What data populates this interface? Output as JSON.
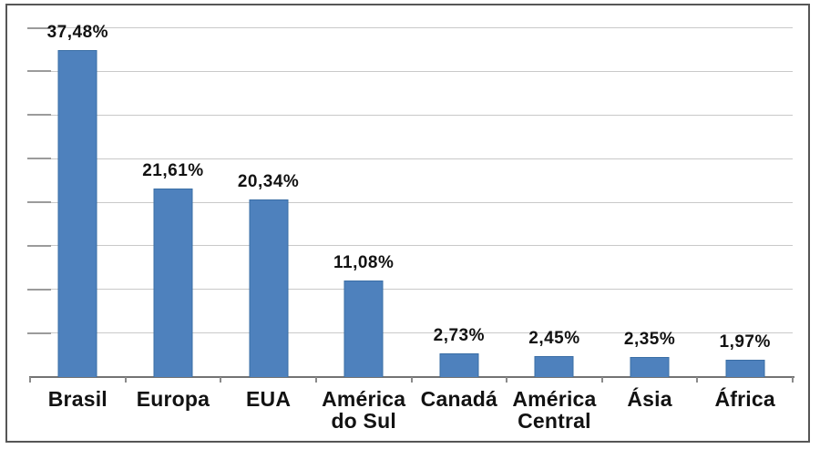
{
  "chart_data": {
    "type": "bar",
    "title": "",
    "xlabel": "",
    "ylabel": "",
    "categories": [
      "Brasil",
      "Europa",
      "EUA",
      "América do Sul",
      "Canadá",
      "América Central",
      "Ásia",
      "África"
    ],
    "values": [
      37.48,
      21.61,
      20.34,
      11.08,
      2.73,
      2.45,
      2.35,
      1.97
    ],
    "value_labels": [
      "37,48%",
      "21,61%",
      "20,34%",
      "11,08%",
      "2,73%",
      "2,45%",
      "2,35%",
      "1,97%"
    ],
    "ylim": [
      0,
      40
    ],
    "gridline_step": 5,
    "grid": true,
    "legend": false,
    "y_axis_labels_visible": false,
    "decimal_separator": ",",
    "colors": {
      "bar_fill": "#4e81bd",
      "bar_border": "#3a6ea5",
      "gridline": "#c9c9c9",
      "gridline_end": "#9b9b9b",
      "axis": "#737373",
      "text": "#121212",
      "frame_border": "#565656",
      "background": "#ffffff"
    }
  }
}
